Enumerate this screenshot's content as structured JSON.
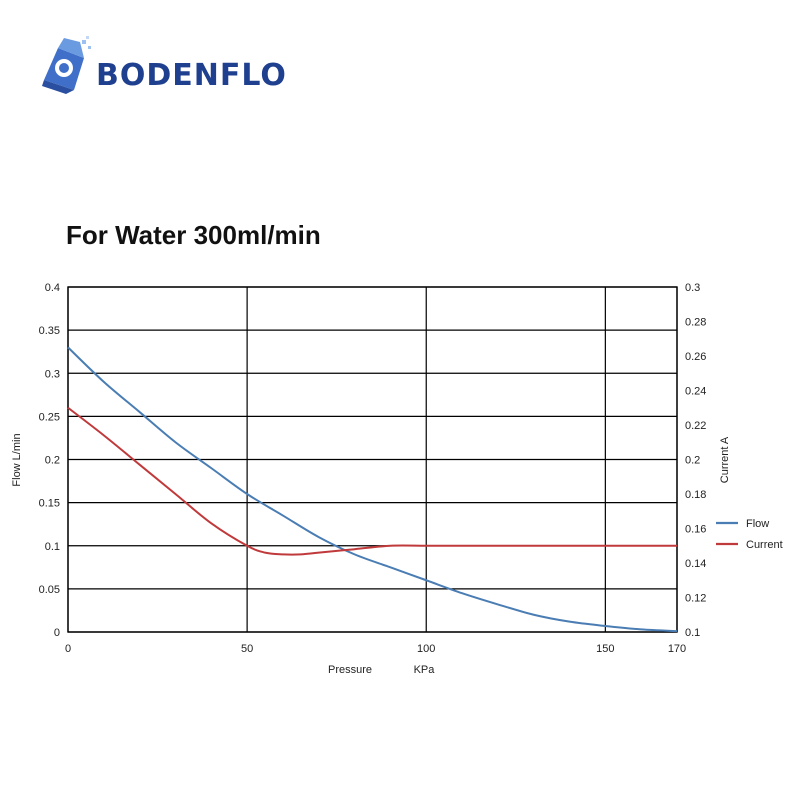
{
  "brand": {
    "name": "BODENFLO"
  },
  "headline": "For Water 300ml/min",
  "colors": {
    "flow": "#4a7db3",
    "current": "#c0393b",
    "brand": "#1f3f8f",
    "grid": "#000000"
  },
  "chart_data": {
    "type": "line",
    "title": "",
    "xlabel": "Pressure",
    "xlabel_unit": "KPa",
    "ylabel": "Flow  L/min",
    "y2label": "Current  A",
    "xlim": [
      0,
      170
    ],
    "ylim": [
      0,
      0.4
    ],
    "y2lim": [
      0.1,
      0.3
    ],
    "x_ticks": [
      0,
      50,
      100,
      150,
      170
    ],
    "x_tick_labels": [
      "0",
      "50",
      "100",
      "150",
      "170"
    ],
    "y_ticks": [
      0,
      0.05,
      0.1,
      0.15,
      0.2,
      0.25,
      0.3,
      0.35,
      0.4
    ],
    "y_tick_labels": [
      "0",
      "0.05",
      "0.1",
      "0.15",
      "0.2",
      "0.25",
      "0.3",
      "0.35",
      "0.4"
    ],
    "y2_ticks": [
      0.1,
      0.12,
      0.14,
      0.16,
      0.18,
      0.2,
      0.22,
      0.24,
      0.26,
      0.28,
      0.3
    ],
    "y2_tick_labels": [
      "0.1",
      "0.12",
      "0.14",
      "0.16",
      "0.18",
      "0.2",
      "0.22",
      "0.24",
      "0.26",
      "0.28",
      "0.3"
    ],
    "grid": true,
    "legend_position": "right",
    "series": [
      {
        "name": "Flow",
        "axis": "left",
        "color": "#4a7db3",
        "x": [
          0,
          10,
          20,
          30,
          40,
          50,
          60,
          70,
          80,
          90,
          100,
          110,
          120,
          130,
          140,
          150,
          160,
          170
        ],
        "y": [
          0.33,
          0.29,
          0.255,
          0.22,
          0.19,
          0.16,
          0.135,
          0.11,
          0.09,
          0.075,
          0.06,
          0.045,
          0.032,
          0.02,
          0.012,
          0.007,
          0.003,
          0.001
        ]
      },
      {
        "name": "Current",
        "axis": "right",
        "color": "#c0393b",
        "x": [
          0,
          10,
          20,
          30,
          40,
          50,
          55,
          60,
          65,
          70,
          80,
          90,
          100,
          110,
          120,
          130,
          140,
          150,
          160,
          170
        ],
        "y": [
          0.23,
          0.214,
          0.197,
          0.18,
          0.163,
          0.15,
          0.146,
          0.145,
          0.145,
          0.146,
          0.148,
          0.15,
          0.15,
          0.15,
          0.15,
          0.15,
          0.15,
          0.15,
          0.15,
          0.15
        ]
      }
    ]
  }
}
